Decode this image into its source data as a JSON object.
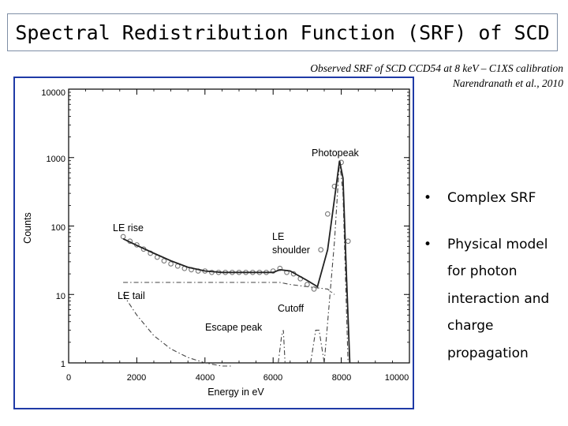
{
  "slide": {
    "title": "Spectral Redistribution Function (SRF) of SCD",
    "subtitle_line1": "Observed SRF of  SCD CCD54 at  8 keV – C1XS calibration",
    "subtitle_line2": "Narendranath et al., 2010",
    "bullets": [
      {
        "symbol": "•",
        "lines": [
          "Complex SRF"
        ]
      },
      {
        "symbol": "•",
        "lines": [
          "Physical model",
          "for photon",
          "interaction and",
          "charge",
          "propagation"
        ]
      }
    ]
  },
  "chart_data": {
    "type": "scatter",
    "xlabel": "Energy in eV",
    "ylabel": "Counts",
    "xlim": [
      0,
      10000
    ],
    "ylim": [
      1,
      10000
    ],
    "yscale": "log",
    "xticks": [
      0,
      2000,
      4000,
      6000,
      8000,
      10000
    ],
    "xtick_labels": [
      "0",
      "2000",
      "4000",
      "6000",
      "8000",
      "10000"
    ],
    "yticks": [
      1,
      10,
      100,
      1000,
      10000
    ],
    "ytick_labels": [
      "1",
      "10",
      "100",
      "1000",
      "10000"
    ],
    "annotations": {
      "photopeak": "Photopeak",
      "le_rise": "LE rise",
      "le_shoulder_1": "LE",
      "le_shoulder_2": "shoulder",
      "le_tail": "LE tail",
      "cutoff": "Cutoff",
      "escape_peak": "Escape peak"
    },
    "data_points": {
      "x": [
        1600,
        1800,
        2000,
        2200,
        2400,
        2600,
        2800,
        3000,
        3200,
        3400,
        3600,
        3800,
        4000,
        4200,
        4400,
        4600,
        4800,
        5000,
        5200,
        5400,
        5600,
        5800,
        6000,
        6200,
        6400,
        6600,
        6800,
        7000,
        7200,
        7400,
        7600,
        7800,
        8000,
        8200
      ],
      "y": [
        70,
        60,
        53,
        46,
        40,
        35,
        31,
        28,
        26,
        24,
        23,
        22,
        22,
        21,
        21,
        21,
        21,
        21,
        21,
        21,
        21,
        21,
        22,
        24,
        21,
        20,
        17,
        14,
        12,
        45,
        150,
        380,
        850,
        60
      ]
    },
    "model_total": {
      "x": [
        1600,
        2000,
        2500,
        3000,
        3500,
        4000,
        4500,
        5000,
        5500,
        6000,
        6200,
        6500,
        7000,
        7300,
        7600,
        7800,
        7950,
        8050,
        8150,
        8250
      ],
      "y": [
        65,
        52,
        40,
        31,
        25,
        22,
        21,
        21,
        21,
        21,
        23,
        22,
        16,
        13,
        45,
        250,
        900,
        500,
        20,
        1
      ]
    },
    "components": [
      {
        "x": [
          1600,
          2000,
          2500,
          3000,
          3500,
          4000,
          4500,
          4800
        ],
        "y": [
          10,
          5,
          2.5,
          1.6,
          1.2,
          1,
          0.8,
          0.7
        ]
      },
      {
        "x": [
          1600,
          2500,
          4000,
          5500,
          6200,
          6500,
          7000,
          7600,
          7800
        ],
        "y": [
          15,
          15,
          15,
          15,
          15,
          14,
          13,
          12,
          10
        ]
      },
      {
        "x": [
          6150,
          6250,
          6300,
          6350
        ],
        "y": [
          1,
          2.5,
          3,
          1
        ]
      },
      {
        "x": [
          7100,
          7250,
          7350,
          7500
        ],
        "y": [
          1,
          3,
          3,
          1
        ]
      },
      {
        "x": [
          7500,
          7800,
          7950,
          8050,
          8200
        ],
        "y": [
          1,
          60,
          900,
          300,
          1
        ]
      }
    ],
    "colors": {
      "frame": "#1f3aa6",
      "points": "#777777",
      "line": "#222222"
    }
  }
}
